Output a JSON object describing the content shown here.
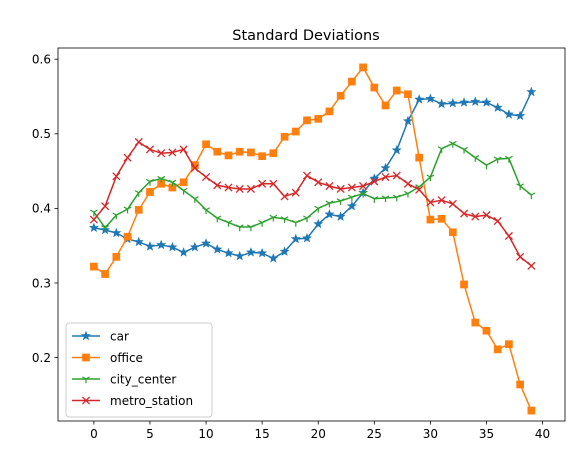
{
  "chart_data": {
    "type": "line",
    "title": "Standard Deviations",
    "xlabel": "",
    "ylabel": "",
    "xlim": [
      -3.2,
      42
    ],
    "ylim": [
      0.115,
      0.615
    ],
    "xticks": [
      0,
      5,
      10,
      15,
      20,
      25,
      30,
      35,
      40
    ],
    "yticks": [
      0.2,
      0.3,
      0.4,
      0.5,
      0.6
    ],
    "ytick_labels": [
      "0.2",
      "0.3",
      "0.4",
      "0.5",
      "0.6"
    ],
    "grid": false,
    "legend_position": "lower-left",
    "x": [
      0,
      1,
      2,
      3,
      4,
      5,
      6,
      7,
      8,
      9,
      10,
      11,
      12,
      13,
      14,
      15,
      16,
      17,
      18,
      19,
      20,
      21,
      22,
      23,
      24,
      25,
      26,
      27,
      28,
      29,
      30,
      31,
      32,
      33,
      34,
      35,
      36,
      37,
      38,
      39
    ],
    "series": [
      {
        "name": "car",
        "color": "#1f77b4",
        "marker": "star",
        "values": [
          0.374,
          0.371,
          0.367,
          0.359,
          0.355,
          0.349,
          0.351,
          0.348,
          0.341,
          0.348,
          0.353,
          0.345,
          0.34,
          0.336,
          0.341,
          0.34,
          0.333,
          0.342,
          0.359,
          0.36,
          0.379,
          0.392,
          0.389,
          0.403,
          0.421,
          0.44,
          0.454,
          0.478,
          0.517,
          0.546,
          0.547,
          0.54,
          0.541,
          0.542,
          0.543,
          0.542,
          0.535,
          0.526,
          0.524,
          0.556
        ]
      },
      {
        "name": "office",
        "color": "#ff7f0e",
        "marker": "square",
        "values": [
          0.322,
          0.312,
          0.335,
          0.362,
          0.398,
          0.422,
          0.433,
          0.428,
          0.435,
          0.458,
          0.486,
          0.476,
          0.471,
          0.476,
          0.475,
          0.47,
          0.474,
          0.496,
          0.503,
          0.518,
          0.52,
          0.53,
          0.551,
          0.57,
          0.589,
          0.562,
          0.538,
          0.558,
          0.553,
          0.468,
          0.385,
          0.386,
          0.368,
          0.298,
          0.247,
          0.236,
          0.211,
          0.218,
          0.164,
          0.129
        ]
      },
      {
        "name": "city_center",
        "color": "#2ca02c",
        "marker": "tri-down",
        "values": [
          0.395,
          0.374,
          0.391,
          0.399,
          0.421,
          0.436,
          0.44,
          0.435,
          0.424,
          0.413,
          0.398,
          0.387,
          0.381,
          0.375,
          0.375,
          0.381,
          0.388,
          0.386,
          0.381,
          0.387,
          0.4,
          0.407,
          0.41,
          0.415,
          0.42,
          0.413,
          0.414,
          0.415,
          0.42,
          0.429,
          0.442,
          0.48,
          0.487,
          0.479,
          0.468,
          0.458,
          0.466,
          0.467,
          0.43,
          0.418
        ]
      },
      {
        "name": "metro_station",
        "color": "#d62728",
        "marker": "x",
        "values": [
          0.385,
          0.403,
          0.443,
          0.468,
          0.489,
          0.479,
          0.474,
          0.475,
          0.479,
          0.454,
          0.442,
          0.431,
          0.428,
          0.426,
          0.426,
          0.433,
          0.433,
          0.416,
          0.421,
          0.444,
          0.435,
          0.43,
          0.426,
          0.428,
          0.43,
          0.436,
          0.442,
          0.444,
          0.433,
          0.425,
          0.408,
          0.411,
          0.406,
          0.393,
          0.389,
          0.391,
          0.383,
          0.363,
          0.335,
          0.323
        ]
      }
    ]
  }
}
